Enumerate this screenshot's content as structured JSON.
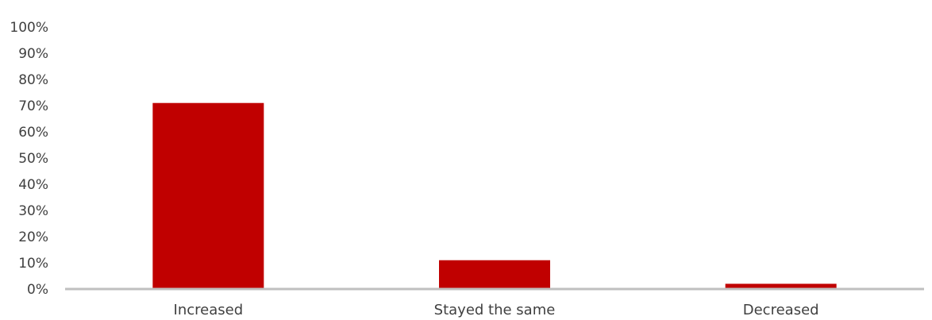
{
  "chart_data": {
    "type": "bar",
    "categories": [
      "Increased",
      "Stayed the same",
      "Decreased"
    ],
    "values": [
      71,
      11,
      2
    ],
    "yticks": [
      "0%",
      "10%",
      "20%",
      "30%",
      "40%",
      "50%",
      "60%",
      "70%",
      "80%",
      "90%",
      "100%"
    ],
    "ylim": [
      0,
      100
    ],
    "grid": false,
    "bar_color": "#c00000",
    "axis_color": "#bfbfbf",
    "title": "",
    "xlabel": "",
    "ylabel": ""
  }
}
